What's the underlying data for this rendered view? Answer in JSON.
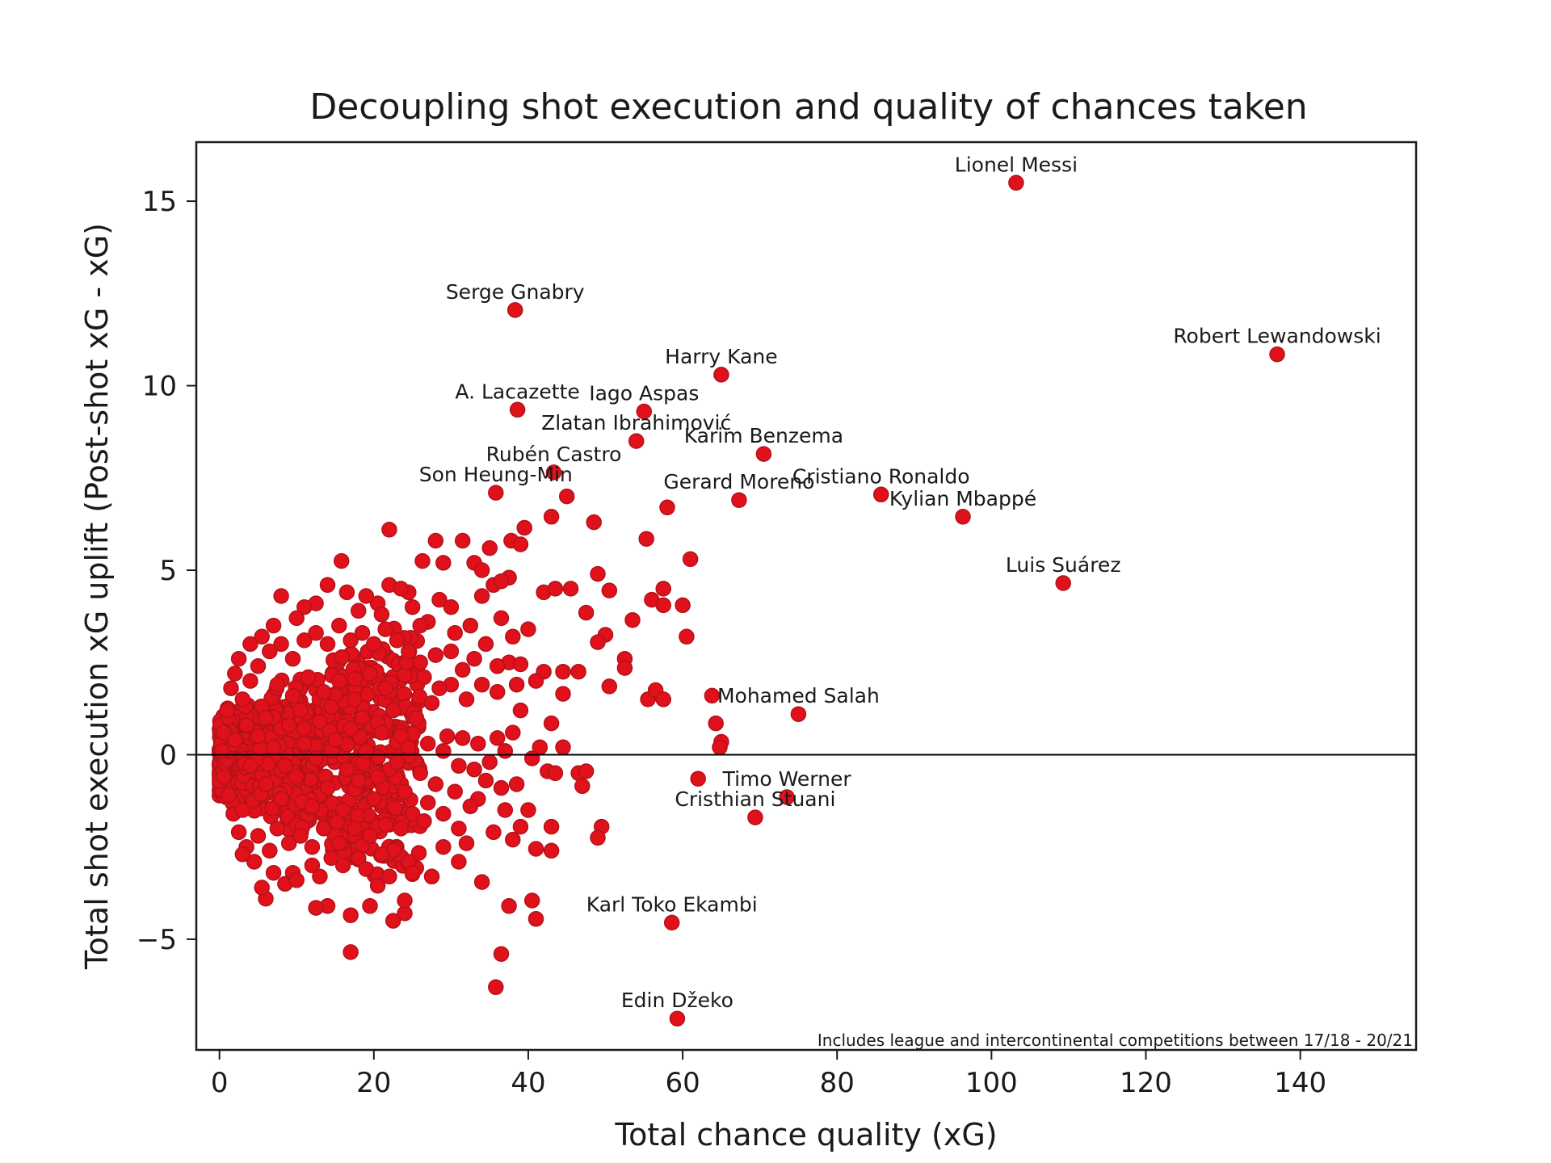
{
  "chart_data": {
    "type": "scatter",
    "title": "Decoupling shot execution and quality of chances taken",
    "xlabel": "Total chance quality (xG)",
    "ylabel": "Total shot execution xG uplift (Post-shot xG - xG)",
    "xlim": [
      -3,
      155
    ],
    "ylim": [
      -8,
      16.6
    ],
    "xticks": [
      0,
      20,
      40,
      60,
      80,
      100,
      120,
      140
    ],
    "yticks": [
      -5,
      0,
      5,
      10,
      15
    ],
    "grid": false,
    "reference_line": {
      "y": 0,
      "color": "#000000"
    },
    "footnote": "Includes league and intercontinental competitions between 17/18 - 20/21",
    "marker_color": "#e0111b",
    "marker_edge_color": "#b3121a",
    "labeled_points": [
      {
        "name": "Lionel Messi",
        "x": 103.2,
        "y": 15.5
      },
      {
        "name": "Robert Lewandowski",
        "x": 137.0,
        "y": 10.85
      },
      {
        "name": "Serge Gnabry",
        "x": 38.3,
        "y": 12.05
      },
      {
        "name": "Harry Kane",
        "x": 65.0,
        "y": 10.3
      },
      {
        "name": "A. Lacazette",
        "x": 38.6,
        "y": 9.35
      },
      {
        "name": "Iago Aspas",
        "x": 55.0,
        "y": 9.3
      },
      {
        "name": "Zlatan Ibrahimović",
        "x": 54.0,
        "y": 8.5
      },
      {
        "name": "Karim Benzema",
        "x": 70.5,
        "y": 8.15
      },
      {
        "name": "Rubén Castro",
        "x": 43.3,
        "y": 7.65
      },
      {
        "name": "Son Heung-Min",
        "x": 35.8,
        "y": 7.1
      },
      {
        "name": "Gerard Moreno",
        "x": 67.3,
        "y": 6.9
      },
      {
        "name": "Cristiano Ronaldo",
        "x": 85.7,
        "y": 7.05
      },
      {
        "name": "Kylian Mbappé",
        "x": 96.3,
        "y": 6.45
      },
      {
        "name": "Luis Suárez",
        "x": 109.3,
        "y": 4.65
      },
      {
        "name": "Mohamed Salah",
        "x": 75.0,
        "y": 1.1
      },
      {
        "name": "Timo Werner",
        "x": 73.5,
        "y": -1.15
      },
      {
        "name": "Cristhian Stuani",
        "x": 69.4,
        "y": -1.7
      },
      {
        "name": "Karl Toko Ekambi",
        "x": 58.6,
        "y": -4.55
      },
      {
        "name": "Edin Džeko",
        "x": 59.3,
        "y": -7.15
      }
    ],
    "points": [
      [
        22.0,
        6.1
      ],
      [
        28.0,
        5.8
      ],
      [
        31.5,
        5.8
      ],
      [
        35.0,
        5.6
      ],
      [
        37.8,
        5.8
      ],
      [
        39.0,
        5.7
      ],
      [
        39.5,
        6.15
      ],
      [
        43.0,
        6.45
      ],
      [
        45.0,
        7.0
      ],
      [
        48.5,
        6.3
      ],
      [
        58.0,
        6.7
      ],
      [
        55.3,
        5.85
      ],
      [
        61.0,
        5.3
      ],
      [
        15.8,
        5.25
      ],
      [
        26.3,
        5.25
      ],
      [
        29.0,
        5.2
      ],
      [
        33.0,
        5.2
      ],
      [
        34.0,
        5.0
      ],
      [
        35.5,
        4.6
      ],
      [
        37.5,
        4.8
      ],
      [
        36.5,
        4.7
      ],
      [
        42.0,
        4.4
      ],
      [
        43.5,
        4.5
      ],
      [
        45.5,
        4.5
      ],
      [
        49.0,
        4.9
      ],
      [
        50.5,
        4.45
      ],
      [
        57.5,
        4.5
      ],
      [
        56.0,
        4.2
      ],
      [
        57.5,
        4.05
      ],
      [
        60.0,
        4.05
      ],
      [
        53.5,
        3.65
      ],
      [
        47.5,
        3.85
      ],
      [
        60.5,
        3.2
      ],
      [
        50.0,
        3.25
      ],
      [
        49.0,
        3.05
      ],
      [
        52.5,
        2.6
      ],
      [
        52.5,
        2.35
      ],
      [
        46.5,
        2.25
      ],
      [
        44.5,
        2.25
      ],
      [
        42.0,
        2.25
      ],
      [
        44.5,
        1.65
      ],
      [
        50.5,
        1.85
      ],
      [
        55.5,
        1.5
      ],
      [
        56.5,
        1.75
      ],
      [
        57.5,
        1.5
      ],
      [
        63.8,
        1.6
      ],
      [
        64.3,
        0.85
      ],
      [
        65.0,
        0.35
      ],
      [
        64.8,
        0.2
      ],
      [
        43.0,
        0.85
      ],
      [
        44.5,
        0.2
      ],
      [
        41.5,
        0.2
      ],
      [
        40.5,
        -0.1
      ],
      [
        42.5,
        -0.45
      ],
      [
        43.5,
        -0.5
      ],
      [
        46.5,
        -0.5
      ],
      [
        47.5,
        -0.45
      ],
      [
        47.0,
        -0.85
      ],
      [
        62.0,
        -0.65
      ],
      [
        40.0,
        -1.5
      ],
      [
        39.0,
        -1.95
      ],
      [
        43.0,
        -1.95
      ],
      [
        49.5,
        -1.95
      ],
      [
        49.0,
        -2.25
      ],
      [
        41.0,
        -2.55
      ],
      [
        43.0,
        -2.6
      ],
      [
        38.0,
        -2.3
      ],
      [
        34.0,
        -3.45
      ],
      [
        31.0,
        -2.9
      ],
      [
        27.5,
        -3.3
      ],
      [
        20.5,
        -3.55
      ],
      [
        19.5,
        -4.1
      ],
      [
        17.0,
        -4.35
      ],
      [
        14.0,
        -4.1
      ],
      [
        12.5,
        -4.15
      ],
      [
        22.5,
        -4.5
      ],
      [
        24.0,
        -4.3
      ],
      [
        24.0,
        -3.95
      ],
      [
        37.5,
        -4.1
      ],
      [
        40.5,
        -3.95
      ],
      [
        41.0,
        -4.45
      ],
      [
        36.5,
        -5.4
      ],
      [
        35.8,
        -6.3
      ],
      [
        17.0,
        -5.35
      ],
      [
        6.0,
        -3.9
      ],
      [
        5.5,
        -3.6
      ],
      [
        8.5,
        -3.5
      ],
      [
        9.5,
        -3.2
      ],
      [
        12.0,
        -3.0
      ],
      [
        14.5,
        -2.8
      ],
      [
        18.0,
        -2.8
      ],
      [
        21.0,
        -2.7
      ],
      [
        24.5,
        -2.9
      ],
      [
        29.0,
        -2.5
      ],
      [
        32.0,
        -2.4
      ],
      [
        35.5,
        -2.1
      ],
      [
        37.0,
        -1.5
      ],
      [
        33.5,
        -1.2
      ],
      [
        30.5,
        -1.0
      ],
      [
        28.0,
        -0.8
      ],
      [
        26.0,
        -0.5
      ],
      [
        27.0,
        0.3
      ],
      [
        29.5,
        0.5
      ],
      [
        31.5,
        0.45
      ],
      [
        33.5,
        0.3
      ],
      [
        36.0,
        0.45
      ],
      [
        38.0,
        0.6
      ],
      [
        39.0,
        1.2
      ],
      [
        36.0,
        1.7
      ],
      [
        38.5,
        1.9
      ],
      [
        37.5,
        2.5
      ],
      [
        39.0,
        2.45
      ],
      [
        41.0,
        2.0
      ],
      [
        40.0,
        3.4
      ],
      [
        38.0,
        3.2
      ],
      [
        34.5,
        3.0
      ],
      [
        33.0,
        2.6
      ],
      [
        31.5,
        2.3
      ],
      [
        30.0,
        1.9
      ],
      [
        28.5,
        1.8
      ],
      [
        28.0,
        2.7
      ],
      [
        30.5,
        3.3
      ],
      [
        27.0,
        3.6
      ],
      [
        24.5,
        4.4
      ],
      [
        22.0,
        4.6
      ],
      [
        20.5,
        4.1
      ],
      [
        19.0,
        4.3
      ],
      [
        18.0,
        3.9
      ],
      [
        16.5,
        4.4
      ],
      [
        14.0,
        4.6
      ],
      [
        12.5,
        4.1
      ],
      [
        11.0,
        4.0
      ],
      [
        8.0,
        4.3
      ],
      [
        10.0,
        3.7
      ],
      [
        7.0,
        3.5
      ],
      [
        5.5,
        3.2
      ],
      [
        4.0,
        3.0
      ],
      [
        2.5,
        2.6
      ],
      [
        1.5,
        1.8
      ],
      [
        1.0,
        1.2
      ],
      [
        0.5,
        0.6
      ],
      [
        0.3,
        0.1
      ],
      [
        0.6,
        -0.6
      ],
      [
        1.2,
        -1.1
      ],
      [
        1.8,
        -1.6
      ],
      [
        2.5,
        -2.1
      ],
      [
        3.5,
        -2.5
      ],
      [
        4.5,
        -2.9
      ],
      [
        3.0,
        -2.7
      ],
      [
        5.0,
        -2.2
      ],
      [
        6.5,
        -2.6
      ],
      [
        7.5,
        -2.0
      ],
      [
        9.0,
        -2.4
      ],
      [
        10.5,
        -2.2
      ],
      [
        12.0,
        -2.5
      ],
      [
        13.5,
        -2.0
      ],
      [
        15.5,
        -2.4
      ],
      [
        17.5,
        -2.0
      ],
      [
        19.5,
        -2.2
      ],
      [
        21.5,
        -1.9
      ],
      [
        23.5,
        -2.0
      ],
      [
        25.0,
        -1.6
      ],
      [
        26.5,
        -1.8
      ],
      [
        3.0,
        1.5
      ],
      [
        4.0,
        2.0
      ],
      [
        5.0,
        2.4
      ],
      [
        6.5,
        2.8
      ],
      [
        8.0,
        3.0
      ],
      [
        9.5,
        2.6
      ],
      [
        11.0,
        3.1
      ],
      [
        12.5,
        3.3
      ],
      [
        14.0,
        3.0
      ],
      [
        15.5,
        3.5
      ],
      [
        17.0,
        3.1
      ],
      [
        18.5,
        3.3
      ],
      [
        20.0,
        3.0
      ],
      [
        21.5,
        3.4
      ],
      [
        23.0,
        3.1
      ],
      [
        24.5,
        2.8
      ],
      [
        26.0,
        2.5
      ],
      [
        27.5,
        1.4
      ],
      [
        25.5,
        1.0
      ],
      [
        23.5,
        0.5
      ],
      [
        21.5,
        1.8
      ],
      [
        19.5,
        2.2
      ],
      [
        17.5,
        1.5
      ],
      [
        15.5,
        2.0
      ],
      [
        13.5,
        1.7
      ],
      [
        11.5,
        2.1
      ],
      [
        9.5,
        1.6
      ],
      [
        7.5,
        1.9
      ],
      [
        5.5,
        1.3
      ],
      [
        3.5,
        0.8
      ],
      [
        2.0,
        0.4
      ],
      [
        4.0,
        -0.3
      ],
      [
        6.0,
        -0.8
      ],
      [
        8.0,
        -1.2
      ],
      [
        10.0,
        -0.6
      ],
      [
        12.0,
        -1.4
      ],
      [
        14.0,
        -0.9
      ],
      [
        16.0,
        -1.5
      ],
      [
        18.0,
        -0.7
      ],
      [
        20.0,
        -1.2
      ],
      [
        22.0,
        -0.4
      ],
      [
        24.0,
        -1.0
      ],
      [
        5.0,
        0.5
      ],
      [
        7.0,
        0.2
      ],
      [
        9.0,
        0.8
      ],
      [
        11.0,
        0.3
      ],
      [
        13.0,
        0.9
      ],
      [
        15.0,
        0.4
      ],
      [
        17.0,
        0.7
      ],
      [
        19.0,
        0.1
      ],
      [
        21.0,
        0.6
      ],
      [
        23.0,
        -0.2
      ],
      [
        6.0,
        1.0
      ],
      [
        8.5,
        -0.3
      ],
      [
        10.5,
        1.2
      ],
      [
        12.5,
        -0.1
      ],
      [
        14.5,
        1.3
      ],
      [
        16.5,
        -0.4
      ],
      [
        18.5,
        1.0
      ],
      [
        20.5,
        -0.6
      ],
      [
        22.5,
        1.2
      ],
      [
        24.5,
        0.2
      ],
      [
        2.0,
        2.2
      ],
      [
        3.0,
        -1.5
      ],
      [
        7.0,
        -3.2
      ],
      [
        10.0,
        -3.4
      ],
      [
        13.0,
        -3.3
      ],
      [
        16.0,
        -3.0
      ],
      [
        19.0,
        -3.1
      ],
      [
        22.0,
        -3.3
      ],
      [
        25.0,
        -3.2
      ],
      [
        26.0,
        3.5
      ],
      [
        28.5,
        4.2
      ],
      [
        30.0,
        4.0
      ],
      [
        32.5,
        3.5
      ],
      [
        34.0,
        4.3
      ],
      [
        36.5,
        3.7
      ],
      [
        29.0,
        -1.6
      ],
      [
        31.0,
        -2.0
      ],
      [
        32.5,
        -1.4
      ],
      [
        34.5,
        -0.7
      ],
      [
        36.5,
        -0.9
      ],
      [
        38.5,
        -0.8
      ],
      [
        37.0,
        0.1
      ],
      [
        35.0,
        -0.2
      ],
      [
        33.0,
        -0.4
      ],
      [
        31.0,
        -0.3
      ],
      [
        29.0,
        0.1
      ],
      [
        27.0,
        -1.3
      ],
      [
        30.0,
        2.8
      ],
      [
        32.0,
        1.5
      ],
      [
        34.0,
        1.9
      ],
      [
        36.0,
        2.4
      ],
      [
        26.5,
        2.1
      ],
      [
        25.0,
        4.0
      ],
      [
        23.5,
        4.5
      ],
      [
        21.0,
        3.8
      ]
    ]
  }
}
